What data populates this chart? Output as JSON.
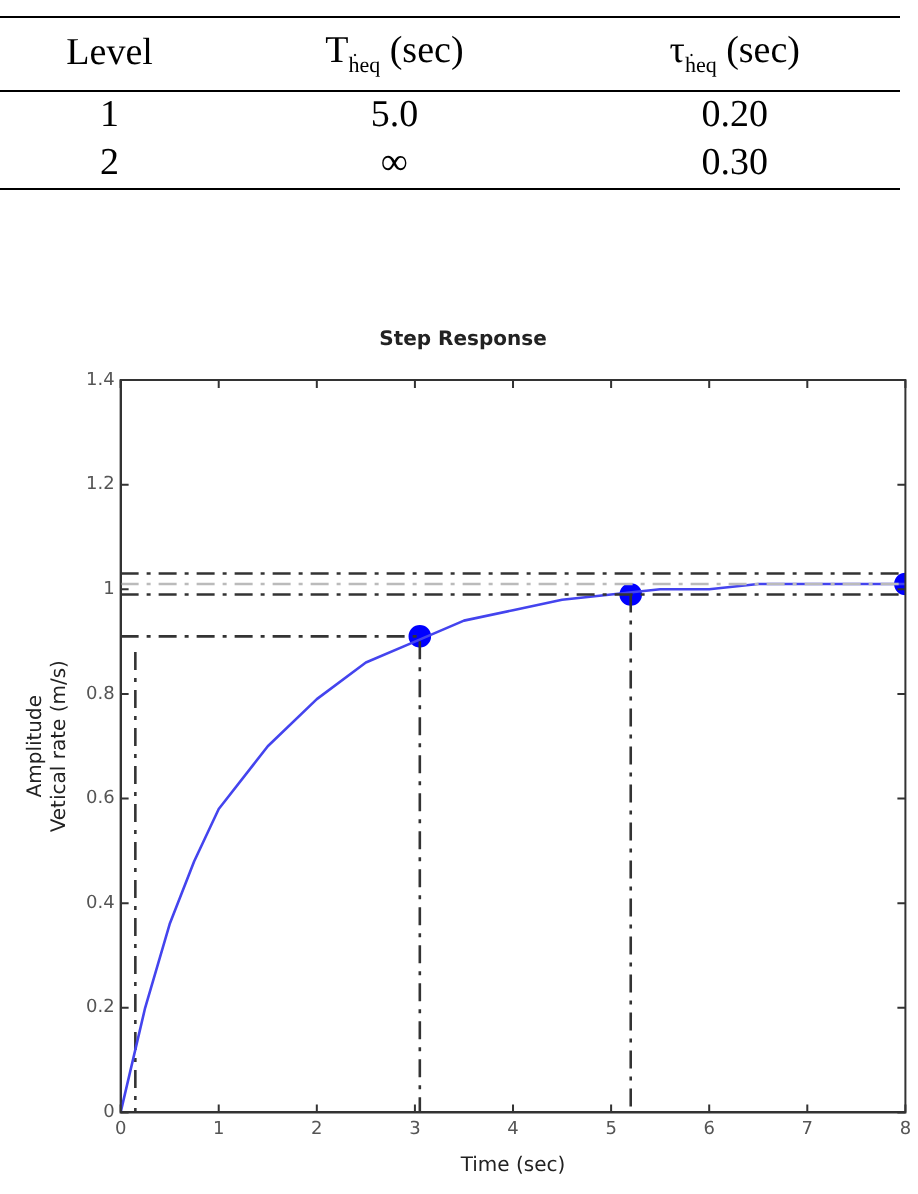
{
  "chart_data": [
    {
      "type": "other",
      "categories": [
        "Level",
        "T$_{ḣeq}$ (sec)",
        "τ$_{ḣeq}$ (sec)"
      ],
      "annotations": [
        "1",
        "5.0",
        "0.20",
        "2",
        "∞",
        "0.30"
      ]
    },
    {
      "type": "line",
      "title": "Step Response",
      "xlabel": "Time (sec)",
      "ylabel": "Amplitude\nVetical rate (m/s)",
      "xlim": [
        0,
        8
      ],
      "xticks": [
        0,
        1,
        2,
        3,
        4,
        5,
        6,
        7,
        8
      ],
      "ylim": [
        0,
        1.4
      ],
      "yticks": [
        0,
        0.2,
        0.4,
        0.6,
        0.8,
        1,
        1.2,
        1.4
      ],
      "grid": false,
      "legend": false,
      "series": [
        {
          "type": "line",
          "color": "#4444ee",
          "marker": "none",
          "line_style": "solid",
          "x": [
            0,
            0.25,
            0.5,
            0.75,
            1,
            1.5,
            2,
            2.5,
            3,
            3.5,
            4,
            4.5,
            5,
            5.5,
            6,
            6.5,
            7,
            7.5,
            8
          ],
          "values": [
            0,
            0.2,
            0.36,
            0.48,
            0.58,
            0.7,
            0.79,
            0.86,
            0.9,
            0.94,
            0.96,
            0.98,
            0.99,
            1.0,
            1.0,
            1.01,
            1.01,
            1.01,
            1.01
          ]
        },
        {
          "type": "line",
          "color": "#333333",
          "marker": "none",
          "line_style": "dashed",
          "x": [
            0,
            3.05,
            3.05
          ],
          "values": [
            0.91,
            0.91,
            0
          ]
        },
        {
          "type": "line",
          "color": "#333333",
          "marker": "none",
          "line_style": "dashed",
          "x": [
            5.2,
            5.2
          ],
          "values": [
            0.99,
            0
          ]
        },
        {
          "type": "line",
          "color": "#333333",
          "marker": "none",
          "line_style": "dashed",
          "x": [
            0.15,
            0.15
          ],
          "values": [
            0.88,
            0
          ]
        },
        {
          "type": "scatter",
          "color": "#0000ff",
          "marker": "circle",
          "x": [
            3.05,
            5.2,
            8
          ],
          "values": [
            0.91,
            0.99,
            1.01
          ]
        }
      ],
      "ref_lines": [
        {
          "axis": "y",
          "value": 1.03,
          "color": "#333333",
          "line_style": "dashed"
        },
        {
          "axis": "y",
          "value": 1.01,
          "color": "#bbbbbb",
          "line_style": "dashed"
        },
        {
          "axis": "y",
          "value": 0.99,
          "color": "#333333",
          "line_style": "dashed"
        }
      ]
    }
  ]
}
